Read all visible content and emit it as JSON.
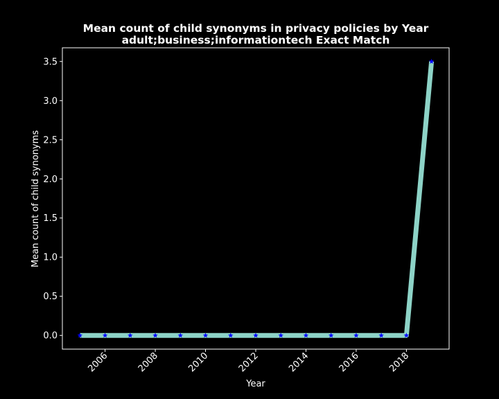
{
  "chart_data": {
    "type": "line",
    "title": "Mean count of child synonyms in privacy policies by Year",
    "subtitle": "adult;business;informationtech Exact Match",
    "xlabel": "Year",
    "ylabel": "Mean count of child synonyms",
    "x": [
      2005,
      2006,
      2007,
      2008,
      2009,
      2010,
      2011,
      2012,
      2013,
      2014,
      2015,
      2016,
      2017,
      2018,
      2019
    ],
    "series": [
      {
        "values": [
          0,
          0,
          0,
          0,
          0,
          0,
          0,
          0,
          0,
          0,
          0,
          0,
          0,
          0,
          3.5
        ]
      }
    ],
    "xlim": [
      2004.3,
      2019.7
    ],
    "ylim": [
      -0.175,
      3.675
    ],
    "x_ticks": [
      "2006",
      "2008",
      "2010",
      "2012",
      "2014",
      "2016",
      "2018"
    ],
    "y_ticks": [
      "0.0",
      "0.5",
      "1.0",
      "1.5",
      "2.0",
      "2.5",
      "3.0",
      "3.5"
    ],
    "grid": false,
    "line_color": "#8dd3c7",
    "marker_color": "#0000ff",
    "background": "#000000",
    "axis_color": "#ffffff"
  }
}
